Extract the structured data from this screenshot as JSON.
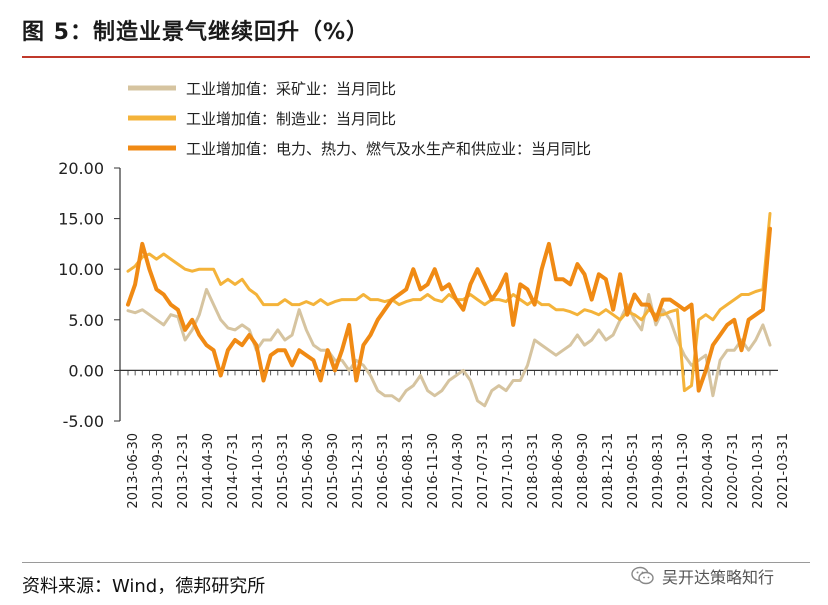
{
  "header": {
    "title": "图 5：制造业景气继续回升（%）"
  },
  "footer": {
    "source": "资料来源：Wind，德邦研究所",
    "watermark": "吴开达策略知行"
  },
  "colors": {
    "mining": "#d6c4a0",
    "manufacturing": "#f4b33a",
    "utilities": "#f08a14",
    "axis": "#333333",
    "title_rule": "#c0392b"
  },
  "icons": {
    "watermark": "wechat-icon"
  },
  "chart_data": {
    "type": "line",
    "title": "",
    "xlabel": "",
    "ylabel": "",
    "ylim": [
      -5,
      20
    ],
    "yticks": [
      "20.00",
      "15.00",
      "10.00",
      "5.00",
      "0.00",
      "-5.00"
    ],
    "ytick_values": [
      20,
      15,
      10,
      5,
      0,
      -5
    ],
    "xtick_labels": [
      "2013-06-30",
      "2013-09-30",
      "2013-12-31",
      "2014-04-30",
      "2014-07-31",
      "2014-10-31",
      "2015-03-31",
      "2015-06-30",
      "2015-09-30",
      "2015-12-31",
      "2016-05-31",
      "2016-08-31",
      "2016-11-30",
      "2017-04-30",
      "2017-07-31",
      "2017-10-31",
      "2018-03-31",
      "2018-06-30",
      "2018-09-30",
      "2018-12-31",
      "2019-05-31",
      "2019-08-31",
      "2019-11-30",
      "2020-04-30",
      "2020-07-31",
      "2020-10-31",
      "2021-03-31"
    ],
    "legend_position": "top-left",
    "n_points": 91,
    "series": [
      {
        "name": "工业增加值：采矿业：当月同比",
        "values": [
          5.9,
          5.7,
          6.0,
          5.5,
          5.0,
          4.5,
          5.5,
          5.3,
          3.0,
          4.0,
          5.5,
          8.0,
          6.5,
          5.0,
          4.2,
          4.0,
          4.5,
          4.0,
          2.0,
          3.0,
          3.0,
          4.0,
          3.0,
          3.5,
          6.0,
          4.0,
          2.5,
          2.0,
          2.0,
          1.0,
          1.0,
          0.0,
          1.0,
          0.5,
          -0.5,
          -2.0,
          -2.5,
          -2.5,
          -3.0,
          -2.0,
          -1.5,
          -0.5,
          -2.0,
          -2.5,
          -2.0,
          -1.0,
          -0.5,
          0.0,
          -1.0,
          -3.0,
          -3.5,
          -2.0,
          -1.5,
          -2.0,
          -1.0,
          -1.0,
          0.5,
          3.0,
          2.5,
          2.0,
          1.5,
          2.0,
          2.5,
          3.5,
          2.5,
          3.0,
          4.0,
          3.0,
          3.5,
          5.0,
          6.5,
          5.0,
          4.0,
          7.5,
          4.5,
          6.0,
          5.0,
          3.0,
          1.5,
          0.5,
          1.0,
          1.5,
          -2.5,
          1.0,
          2.0,
          2.0,
          3.0,
          2.0,
          3.0,
          4.5,
          2.5
        ]
      },
      {
        "name": "工业增加值：制造业：当月同比",
        "values": [
          9.8,
          10.3,
          11.2,
          11.5,
          11.0,
          11.5,
          11.0,
          10.5,
          10.0,
          9.8,
          10.0,
          10.0,
          10.0,
          8.5,
          9.0,
          8.5,
          9.0,
          8.0,
          7.5,
          6.5,
          6.5,
          6.5,
          7.0,
          6.5,
          6.5,
          6.8,
          6.5,
          7.0,
          6.5,
          6.8,
          7.0,
          7.0,
          7.0,
          7.5,
          7.0,
          7.0,
          6.8,
          7.0,
          6.5,
          6.8,
          7.0,
          7.0,
          7.5,
          7.0,
          6.8,
          7.5,
          7.0,
          7.0,
          7.5,
          7.0,
          6.5,
          7.0,
          7.0,
          6.8,
          7.5,
          7.0,
          6.5,
          7.0,
          6.5,
          6.5,
          6.0,
          6.0,
          5.8,
          5.5,
          6.0,
          5.8,
          5.5,
          6.0,
          5.5,
          5.0,
          5.8,
          5.5,
          5.0,
          6.0,
          5.5,
          5.5,
          5.8,
          6.0,
          -2.0,
          -1.5,
          5.0,
          5.5,
          5.0,
          6.0,
          6.5,
          7.0,
          7.5,
          7.5,
          7.8,
          8.0,
          15.5
        ]
      },
      {
        "name": "工业增加值：电力、热力、燃气及水生产和供应业：当月同比",
        "values": [
          6.5,
          8.5,
          12.5,
          10.0,
          8.0,
          7.5,
          6.5,
          6.0,
          4.0,
          5.0,
          3.5,
          2.5,
          2.0,
          -0.5,
          2.0,
          3.0,
          2.5,
          3.5,
          2.5,
          -1.0,
          1.5,
          2.0,
          2.0,
          0.5,
          2.0,
          1.5,
          1.0,
          -1.0,
          2.0,
          0.0,
          2.0,
          4.5,
          -1.0,
          2.5,
          3.5,
          5.0,
          6.0,
          7.0,
          7.5,
          8.0,
          10.0,
          8.0,
          8.5,
          10.0,
          8.0,
          8.5,
          7.0,
          6.0,
          8.5,
          10.0,
          8.5,
          7.0,
          8.0,
          9.5,
          4.5,
          8.5,
          8.0,
          6.5,
          10.0,
          12.5,
          9.0,
          9.0,
          8.5,
          10.5,
          9.5,
          7.0,
          9.5,
          9.0,
          6.0,
          9.5,
          5.5,
          7.5,
          6.5,
          6.5,
          5.0,
          7.0,
          7.0,
          6.5,
          6.0,
          6.5,
          -2.0,
          0.0,
          2.5,
          3.5,
          4.5,
          5.0,
          2.0,
          5.0,
          5.5,
          6.0,
          14.0
        ]
      }
    ]
  }
}
